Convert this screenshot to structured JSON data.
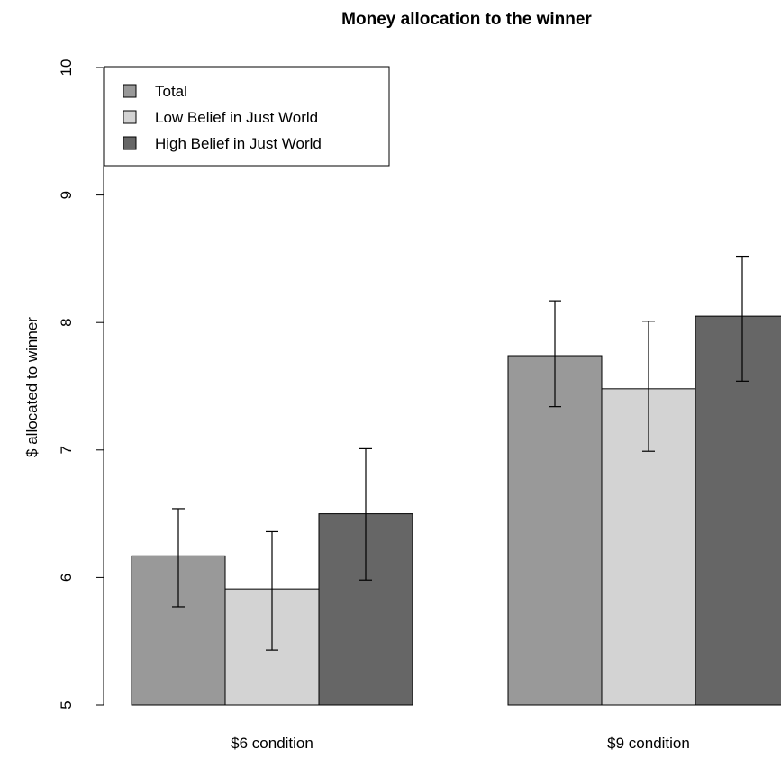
{
  "chart_data": {
    "type": "bar",
    "title": "Money allocation to the winner",
    "xlabel": "",
    "ylabel": "$ allocated to winner",
    "ylim": [
      5,
      10
    ],
    "yticks": [
      "5",
      "6",
      "7",
      "8",
      "9",
      "10"
    ],
    "categories": [
      "$6 condition",
      "$9 condition"
    ],
    "series": [
      {
        "name": "Total",
        "color": "#999999",
        "values": [
          6.17,
          7.74
        ],
        "err_low": [
          5.77,
          7.34
        ],
        "err_high": [
          6.54,
          8.17
        ]
      },
      {
        "name": "Low Belief in Just World",
        "color": "#d3d3d3",
        "values": [
          5.91,
          7.48
        ],
        "err_low": [
          5.43,
          6.99
        ],
        "err_high": [
          6.36,
          8.01
        ]
      },
      {
        "name": "High Belief in Just World",
        "color": "#666666",
        "values": [
          6.5,
          8.05
        ],
        "err_low": [
          5.98,
          7.54
        ],
        "err_high": [
          7.01,
          8.52
        ]
      }
    ],
    "legend_position": "top-left",
    "grid": false
  }
}
